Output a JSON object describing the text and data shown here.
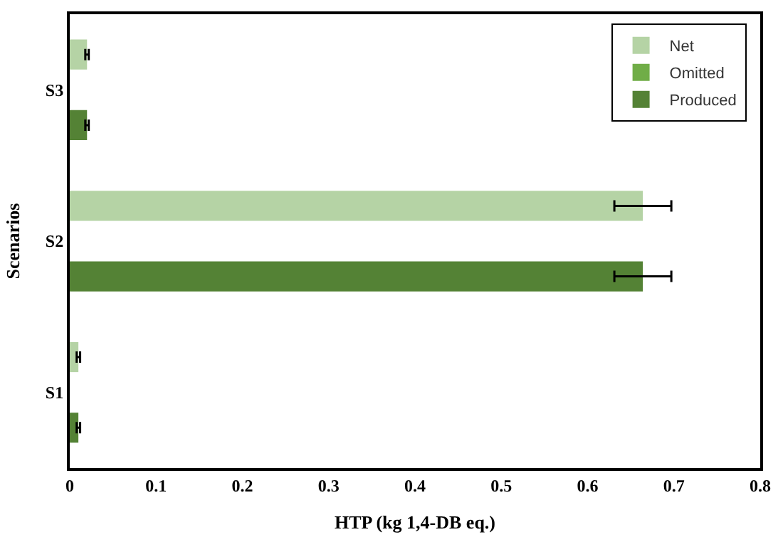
{
  "chart_data": {
    "type": "bar",
    "orientation": "horizontal",
    "xlabel": "HTP (kg 1,4-DB eq.)",
    "ylabel": "Scenarios",
    "categories": [
      "S3",
      "S2",
      "S1"
    ],
    "series": [
      {
        "name": "Net",
        "color": "#b5d3a5",
        "values": [
          0.02,
          0.664,
          0.01
        ],
        "errors": [
          0.002,
          0.033,
          0.002
        ]
      },
      {
        "name": "Omitted",
        "color": "#70ad47",
        "values": [
          0,
          0,
          0
        ]
      },
      {
        "name": "Produced",
        "color": "#548235",
        "values": [
          0.02,
          0.664,
          0.01
        ],
        "errors": [
          0.002,
          0.033,
          0.002
        ]
      }
    ],
    "xlim": [
      0,
      0.8
    ],
    "xticks": [
      0,
      0.1,
      0.2,
      0.3,
      0.4,
      0.5,
      0.6,
      0.7,
      0.8
    ],
    "legend": "top right"
  }
}
